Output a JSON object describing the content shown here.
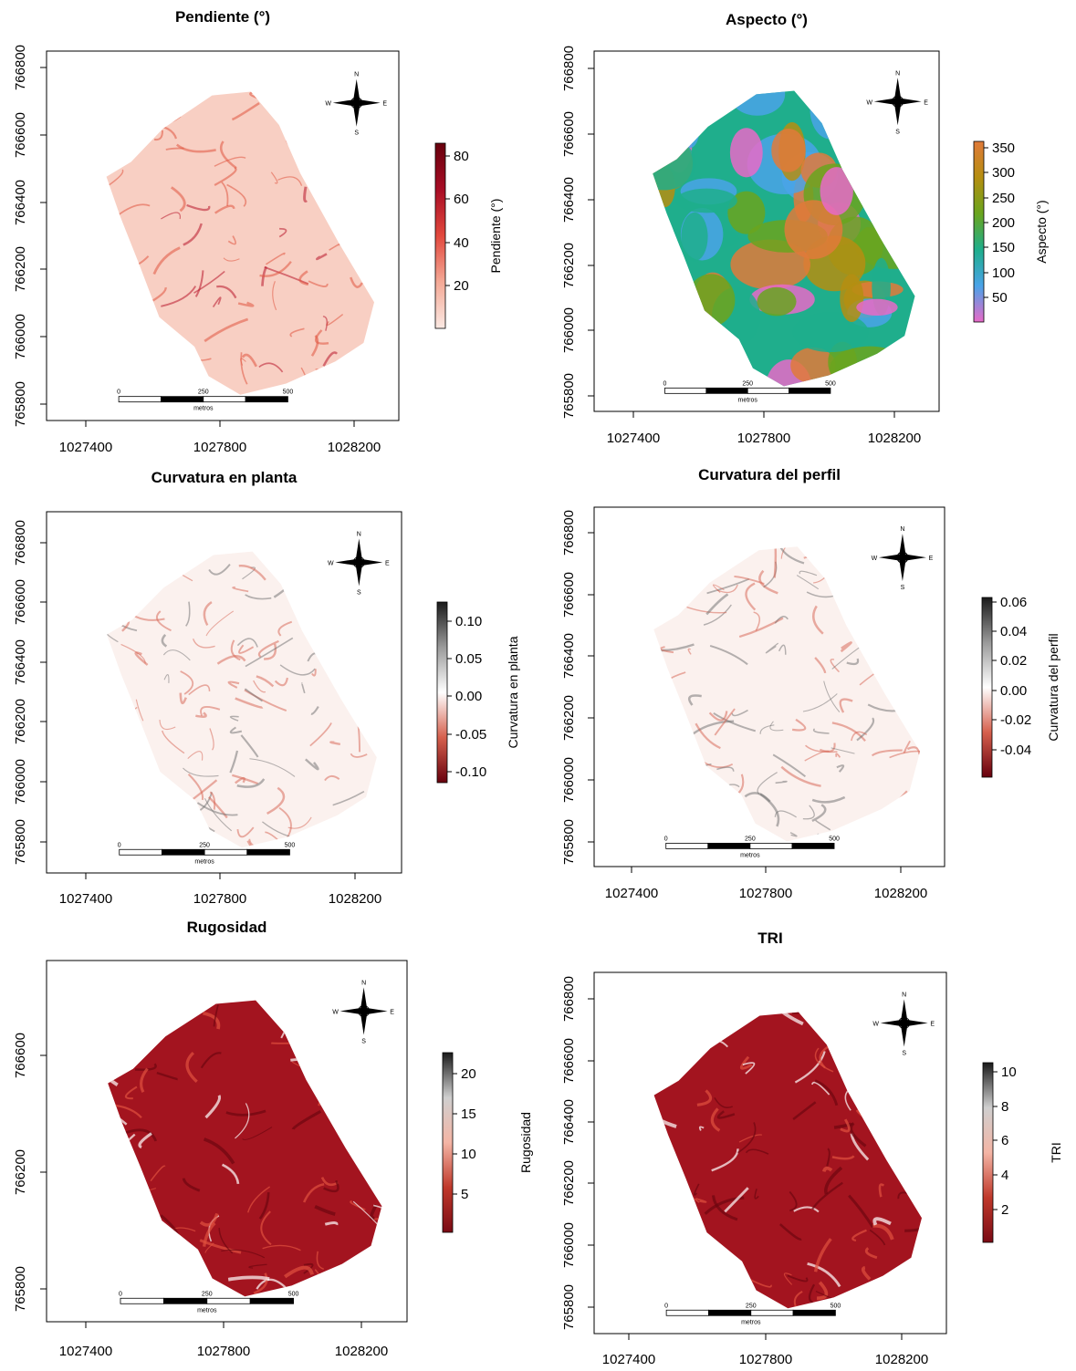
{
  "scale_bar": {
    "tick_labels": [
      "0",
      "250",
      "500"
    ],
    "unit_label": "metros"
  },
  "north_arrow": {
    "labels": [
      "N",
      "S",
      "W",
      "E"
    ]
  },
  "panels": [
    {
      "id": "pendiente",
      "title": "Pendiente (°)",
      "legend_title": "Pendiente (°)",
      "legend_ticks": [
        "80",
        "60",
        "40",
        "20"
      ],
      "legend_colors": [
        "#fbe9e3",
        "#f4a996",
        "#e2483d",
        "#a80d25",
        "#67000d"
      ],
      "map_style": "slope",
      "x_ticks": [
        "1027400",
        "1027800",
        "1028200"
      ],
      "y_ticks": [
        "765800",
        "766000",
        "766200",
        "766400",
        "766600",
        "766800"
      ]
    },
    {
      "id": "aspecto",
      "title": "Aspecto (°)",
      "legend_title": "Aspecto (°)",
      "legend_ticks": [
        "350",
        "300",
        "250",
        "200",
        "150",
        "100",
        "50"
      ],
      "legend_colors": [
        "#e86ac8",
        "#4aa3e8",
        "#1fae8c",
        "#6aa51e",
        "#b58e10",
        "#e07a3a"
      ],
      "map_style": "aspect",
      "x_ticks": [
        "1027400",
        "1027800",
        "1028200"
      ],
      "y_ticks": [
        "765800",
        "766000",
        "766200",
        "766400",
        "766600",
        "766800"
      ]
    },
    {
      "id": "curv-planta",
      "title": "Curvatura en planta",
      "legend_title": "Curvatura en planta",
      "legend_ticks": [
        "0.10",
        "0.05",
        "0.00",
        "-0.05",
        "-0.10"
      ],
      "legend_colors": [
        "#67000d",
        "#d6604d",
        "#ffffff",
        "#9a9a9a",
        "#1a1a1a"
      ],
      "map_style": "curvature",
      "x_ticks": [
        "1027400",
        "1027800",
        "1028200"
      ],
      "y_ticks": [
        "765800",
        "766000",
        "766200",
        "766400",
        "766600",
        "766800"
      ]
    },
    {
      "id": "curv-perfil",
      "title": "Curvatura del perfil",
      "legend_title": "Curvatura del perfil",
      "legend_ticks": [
        "0.06",
        "0.04",
        "0.02",
        "0.00",
        "-0.02",
        "-0.04"
      ],
      "legend_colors": [
        "#67000d",
        "#d6604d",
        "#ffffff",
        "#9a9a9a",
        "#1a1a1a"
      ],
      "map_style": "curvature",
      "x_ticks": [
        "1027400",
        "1027800",
        "1028200"
      ],
      "y_ticks": [
        "765800",
        "766000",
        "766200",
        "766400",
        "766600",
        "766800"
      ]
    },
    {
      "id": "rugosidad",
      "title": "Rugosidad",
      "legend_title": "Rugosidad",
      "legend_ticks": [
        "20",
        "15",
        "10",
        "5"
      ],
      "legend_colors": [
        "#7a0a14",
        "#c0392b",
        "#f4b5a5",
        "#cfcfcf",
        "#1a1a1a"
      ],
      "map_style": "rough",
      "x_ticks": [
        "1027400",
        "1027800",
        "1028200"
      ],
      "y_ticks": [
        "765800",
        "766200",
        "766600"
      ]
    },
    {
      "id": "tri",
      "title": "TRI",
      "legend_title": "TRI",
      "legend_ticks": [
        "10",
        "8",
        "6",
        "4",
        "2"
      ],
      "legend_colors": [
        "#7a0a14",
        "#c0392b",
        "#f4b5a5",
        "#cfcfcf",
        "#1a1a1a"
      ],
      "map_style": "rough",
      "x_ticks": [
        "1027400",
        "1027800",
        "1028200"
      ],
      "y_ticks": [
        "765800",
        "766000",
        "766200",
        "766400",
        "766600",
        "766800"
      ]
    }
  ]
}
